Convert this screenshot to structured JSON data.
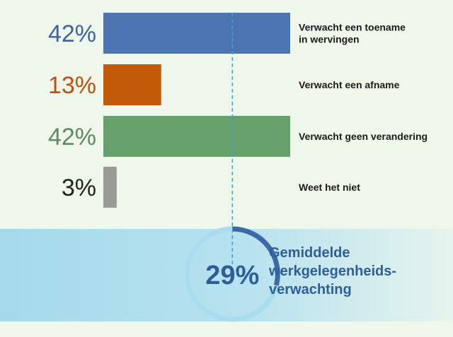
{
  "chart_data": {
    "type": "bar",
    "orientation": "horizontal",
    "categories": [
      "Verwacht een toename in wervingen",
      "Verwacht een afname",
      "Verwacht geen verandering",
      "Weet het niet"
    ],
    "category_lines": [
      [
        "Verwacht een toename",
        "in wervingen"
      ],
      [
        "Verwacht een afname"
      ],
      [
        "Verwacht geen verandering"
      ],
      [
        "Weet het niet"
      ]
    ],
    "values": [
      42,
      13,
      42,
      3
    ],
    "value_labels": [
      "42%",
      "13%",
      "42%",
      "3%"
    ],
    "colors": [
      "#4c74b0",
      "#c35a0a",
      "#67a06a",
      "#9a9a9a"
    ],
    "value_label_colors": [
      "#3e63a3",
      "#c0500c",
      "#5e8a66",
      "#222222"
    ],
    "xlim": [
      0,
      42
    ],
    "reference_line": {
      "value": 29,
      "style": "dashed",
      "color": "#3aa2d8"
    },
    "grid": false,
    "legend": "none",
    "summary": {
      "value": 29,
      "value_label": "29%",
      "title_lines": [
        "Gemiddelde",
        "werkgelegenheids-",
        "verwachting"
      ],
      "title_color": "#2e5e98",
      "ring_color": "#a9dcee",
      "ring_fill_color": "#3c6aa8"
    }
  }
}
